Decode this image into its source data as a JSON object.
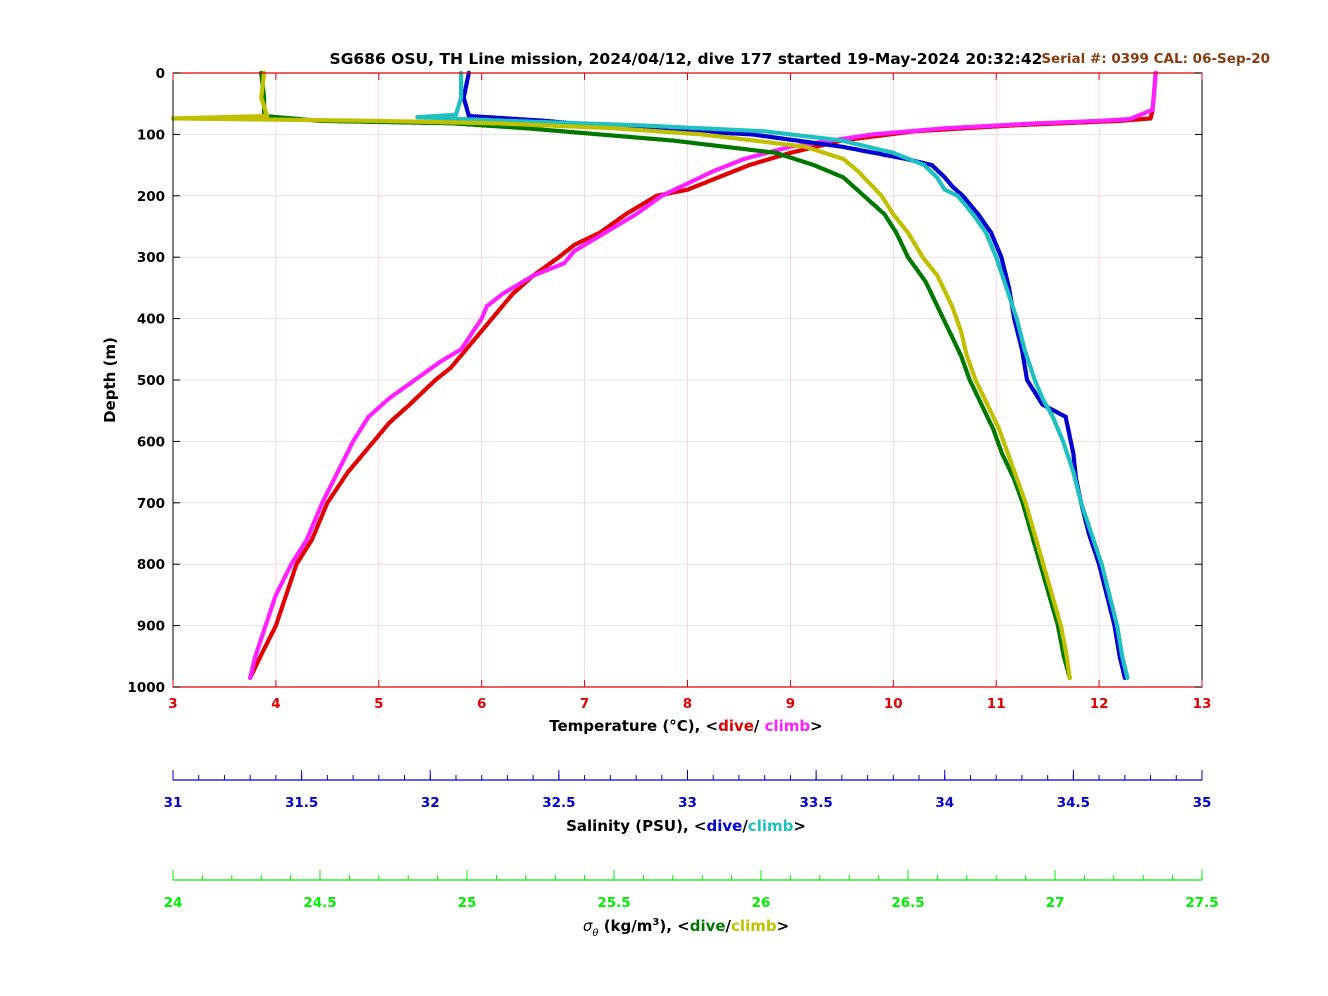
{
  "header": {
    "title": "SG686 OSU, TH Line mission, 2024/04/12, dive 177 started 19-May-2024 20:32:42",
    "serial": "Serial #: 0399  CAL: 06-Sep-20"
  },
  "colors": {
    "temp_dive": "#e00000",
    "temp_climb": "#ff20ff",
    "sal_dive": "#0000d0",
    "sal_climb": "#20c0c0",
    "sigma_dive": "#007800",
    "sigma_climb": "#c0c000",
    "temp_axis": "#e00000",
    "sal_axis": "#0000d0",
    "sigma_axis": "#00ee00",
    "grid": "#dddddd",
    "temp_grid": "#ffc8d8",
    "serial": "#8b3a0e"
  },
  "chart_data": {
    "type": "scatter",
    "ylabel": "Depth (m)",
    "ylim": [
      0,
      1000
    ],
    "y_reversed": true,
    "y_ticks": [
      "0",
      "100",
      "200",
      "300",
      "400",
      "500",
      "600",
      "700",
      "800",
      "900",
      "1000"
    ],
    "grid": true,
    "axes": [
      {
        "id": "temperature",
        "label_main": "Temperature (°C), <",
        "label_dive": "dive",
        "label_sep": "/ ",
        "label_climb": "climb",
        "label_end": ">",
        "xlim": [
          3,
          13
        ],
        "ticks": [
          "3",
          "4",
          "5",
          "6",
          "7",
          "8",
          "9",
          "10",
          "11",
          "12",
          "13"
        ],
        "minor_step": 1
      },
      {
        "id": "salinity",
        "label_main": "Salinity (PSU), <",
        "label_dive": "dive",
        "label_sep": "/",
        "label_climb": "climb",
        "label_end": ">",
        "xlim": [
          31,
          35
        ],
        "ticks": [
          "31",
          "31.5",
          "32",
          "32.5",
          "33",
          "33.5",
          "34",
          "34.5",
          "35"
        ],
        "minor_step": 0.1
      },
      {
        "id": "sigma",
        "label_main": "σ",
        "label_sub": "θ",
        "label_unit": " (kg/m",
        "label_sup": "3",
        "label_unit_end": "), <",
        "label_dive": "dive",
        "label_sep": "/",
        "label_climb": "climb",
        "label_end": ">",
        "xlim": [
          24,
          27.5
        ],
        "ticks": [
          "24",
          "24.5",
          "25",
          "25.5",
          "26",
          "26.5",
          "27",
          "27.5"
        ],
        "minor_step": 0.1
      }
    ],
    "series": [
      {
        "axis": "temperature",
        "kind": "dive",
        "depth": [
          0,
          60,
          74,
          78,
          85,
          95,
          110,
          130,
          150,
          170,
          190,
          200,
          230,
          260,
          280,
          300,
          330,
          360,
          400,
          450,
          480,
          500,
          540,
          570,
          600,
          650,
          700,
          760,
          800,
          850,
          900,
          950,
          985
        ],
        "values": [
          12.55,
          12.52,
          12.5,
          12.2,
          11.2,
          10.2,
          9.5,
          9.0,
          8.6,
          8.3,
          8.0,
          7.7,
          7.4,
          7.15,
          6.9,
          6.75,
          6.5,
          6.3,
          6.1,
          5.85,
          5.7,
          5.55,
          5.3,
          5.1,
          4.95,
          4.7,
          4.5,
          4.35,
          4.2,
          4.1,
          4.0,
          3.85,
          3.75
        ]
      },
      {
        "axis": "temperature",
        "kind": "climb",
        "depth": [
          0,
          60,
          75,
          78,
          82,
          90,
          100,
          120,
          140,
          160,
          180,
          200,
          230,
          260,
          290,
          310,
          330,
          360,
          380,
          400,
          450,
          470,
          500,
          530,
          560,
          600,
          650,
          700,
          760,
          800,
          850,
          900,
          950,
          985
        ],
        "values": [
          12.55,
          12.52,
          12.3,
          12.0,
          11.4,
          10.5,
          9.8,
          9.0,
          8.55,
          8.25,
          8.0,
          7.75,
          7.5,
          7.2,
          6.9,
          6.8,
          6.5,
          6.2,
          6.05,
          6.0,
          5.8,
          5.6,
          5.35,
          5.1,
          4.9,
          4.75,
          4.6,
          4.45,
          4.3,
          4.15,
          4.0,
          3.9,
          3.8,
          3.75
        ]
      },
      {
        "axis": "salinity",
        "kind": "dive",
        "depth": [
          0,
          40,
          70,
          78,
          84,
          90,
          100,
          120,
          140,
          150,
          170,
          185,
          200,
          230,
          260,
          300,
          350,
          400,
          450,
          500,
          540,
          560,
          580,
          620,
          660,
          700,
          750,
          800,
          850,
          900,
          950,
          985
        ],
        "values": [
          32.15,
          32.13,
          32.15,
          32.45,
          32.6,
          32.8,
          33.25,
          33.6,
          33.85,
          33.95,
          34.0,
          34.03,
          34.07,
          34.13,
          34.18,
          34.22,
          34.25,
          34.27,
          34.3,
          34.32,
          34.38,
          34.47,
          34.48,
          34.5,
          34.51,
          34.53,
          34.56,
          34.6,
          34.63,
          34.66,
          34.68,
          34.7
        ]
      },
      {
        "axis": "salinity",
        "kind": "climb",
        "depth": [
          0,
          40,
          68,
          72,
          78,
          85,
          95,
          110,
          130,
          150,
          170,
          190,
          200,
          230,
          260,
          300,
          350,
          400,
          450,
          500,
          530,
          560,
          600,
          650,
          700,
          750,
          800,
          850,
          900,
          950,
          985
        ],
        "values": [
          32.12,
          32.12,
          32.1,
          31.95,
          32.3,
          32.8,
          33.3,
          33.6,
          33.8,
          33.92,
          33.97,
          34.0,
          34.05,
          34.11,
          34.16,
          34.2,
          34.24,
          34.28,
          34.31,
          34.35,
          34.38,
          34.42,
          34.46,
          34.5,
          34.53,
          34.57,
          34.61,
          34.64,
          34.67,
          34.69,
          34.71
        ]
      },
      {
        "axis": "sigma",
        "kind": "dive",
        "depth": [
          0,
          40,
          70,
          78,
          82,
          90,
          100,
          110,
          130,
          150,
          170,
          200,
          230,
          260,
          300,
          340,
          380,
          420,
          460,
          500,
          540,
          580,
          620,
          660,
          700,
          750,
          800,
          850,
          900,
          950,
          985
        ],
        "values": [
          24.3,
          24.31,
          24.31,
          24.5,
          24.95,
          25.2,
          25.45,
          25.7,
          26.05,
          26.18,
          26.28,
          26.35,
          26.42,
          26.46,
          26.5,
          26.56,
          26.6,
          26.64,
          26.68,
          26.71,
          26.75,
          26.79,
          26.82,
          26.86,
          26.89,
          26.92,
          26.95,
          26.98,
          27.01,
          27.03,
          27.05
        ]
      },
      {
        "axis": "sigma",
        "kind": "climb",
        "depth": [
          0,
          40,
          70,
          74,
          78,
          82,
          90,
          100,
          120,
          140,
          160,
          180,
          200,
          230,
          260,
          300,
          330,
          380,
          420,
          460,
          500,
          540,
          580,
          620,
          660,
          700,
          750,
          800,
          850,
          900,
          950,
          985
        ],
        "values": [
          24.31,
          24.3,
          24.32,
          24.0,
          24.7,
          25.1,
          25.5,
          25.8,
          26.15,
          26.28,
          26.33,
          26.37,
          26.41,
          26.45,
          26.5,
          26.55,
          26.6,
          26.65,
          26.68,
          26.7,
          26.73,
          26.77,
          26.81,
          26.84,
          26.87,
          26.9,
          26.93,
          26.96,
          26.99,
          27.02,
          27.04,
          27.05
        ]
      }
    ]
  }
}
